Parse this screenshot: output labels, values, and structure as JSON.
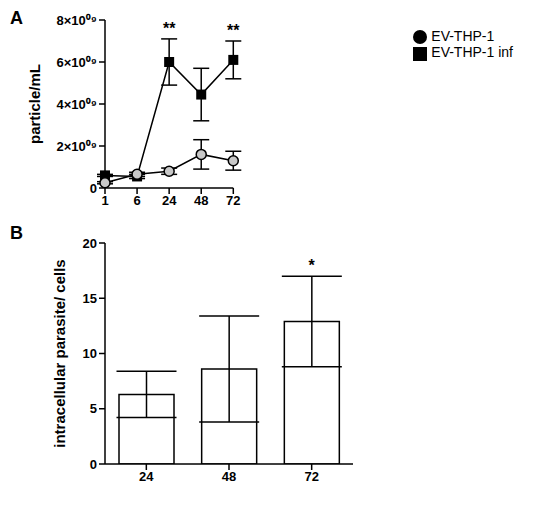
{
  "chart_data": [
    {
      "type": "line",
      "title": "A",
      "y_label": "particle/mL",
      "categories": [
        "1",
        "6",
        "24",
        "48",
        "72"
      ],
      "series": [
        {
          "name": "EV-THP-1 inf",
          "color": "#000000",
          "marker": "square",
          "values": [
            600000000,
            550000000,
            6000000000,
            4450000000,
            6100000000
          ],
          "errors": [
            50000000,
            100000000,
            1100000000,
            1250000000,
            900000000
          ]
        },
        {
          "name": "EV-THP-1",
          "color": "#000000",
          "marker": "circle",
          "values": [
            250000000,
            650000000,
            800000000,
            1600000000,
            1300000000
          ],
          "errors": [
            50000000,
            100000000,
            150000000,
            700000000,
            450000000
          ]
        }
      ],
      "ylim": [
        0,
        8000000000
      ],
      "yticks": [
        0,
        {
          "value": 2000000000,
          "label": "2×10⁰⁹"
        },
        {
          "value": 4000000000,
          "label": "4×10⁰⁹"
        },
        {
          "value": 6000000000,
          "label": "6×10⁰⁹"
        },
        {
          "value": 8000000000,
          "label": "8×10⁰⁹"
        }
      ],
      "annotations": [
        {
          "x": "24",
          "text": "**",
          "series": "EV-THP-1 inf"
        },
        {
          "x": "72",
          "text": "**",
          "series": "EV-THP-1 inf"
        }
      ]
    },
    {
      "type": "bar",
      "title": "B",
      "y_label": "intracellular parasite/ cells",
      "categories": [
        "24",
        "48",
        "72"
      ],
      "values": [
        6.3,
        8.6,
        12.9
      ],
      "errors": [
        2.1,
        4.8,
        4.1
      ],
      "color": "#ffffff",
      "ylim": [
        0,
        20
      ],
      "yticks": [
        0,
        5,
        10,
        15,
        20
      ],
      "annotations": [
        {
          "x": "72",
          "text": "*"
        }
      ]
    }
  ]
}
